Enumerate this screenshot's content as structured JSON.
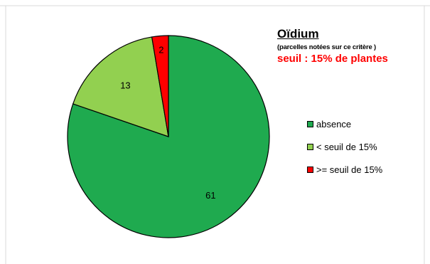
{
  "chart_data": {
    "type": "pie",
    "title": "Oïdium",
    "subtitle": "(parcelles notées sur ce critère )",
    "annotation": "seuil : 15% de plantes",
    "categories": [
      "absence",
      "< seuil de 15%",
      ">= seuil de 15%"
    ],
    "values": [
      61,
      13,
      2
    ],
    "colors": [
      "#1faa4f",
      "#92d050",
      "#ff0000"
    ],
    "legend_position": "right"
  }
}
